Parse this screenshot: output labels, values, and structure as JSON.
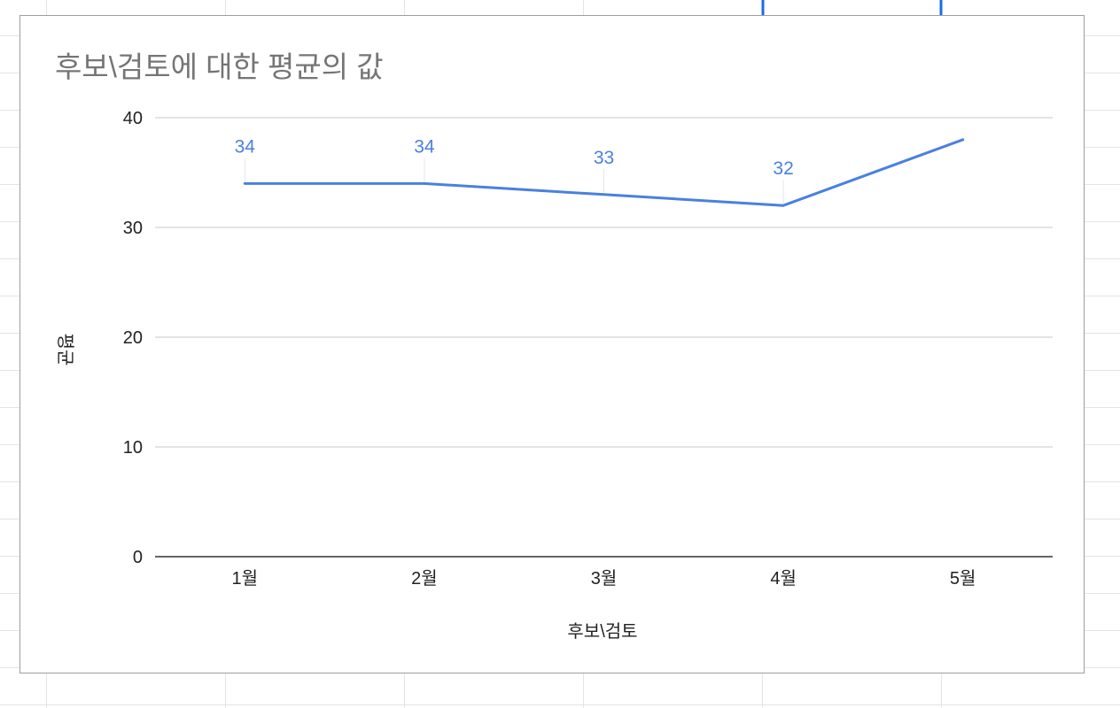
{
  "colors": {
    "series": "#4a80e0",
    "grid": "#c8c8c8",
    "axis": "#333333",
    "sheet_grid": "#e4e4e4",
    "selection": "#1a6ce8"
  },
  "chart_data": {
    "type": "line",
    "title": "후보\\검토에 대한 평균의 값",
    "xlabel": "후보\\검토",
    "ylabel": "평균",
    "categories": [
      "1월",
      "2월",
      "3월",
      "4월",
      "5월"
    ],
    "series": [
      {
        "values": [
          34,
          34,
          33,
          32,
          38
        ],
        "data_labels": [
          "34",
          "34",
          "33",
          "32",
          ""
        ]
      }
    ],
    "y_ticks": [
      "0",
      "10",
      "20",
      "30",
      "40"
    ],
    "ylim": [
      0,
      40
    ],
    "grid": true,
    "legend": "none"
  }
}
